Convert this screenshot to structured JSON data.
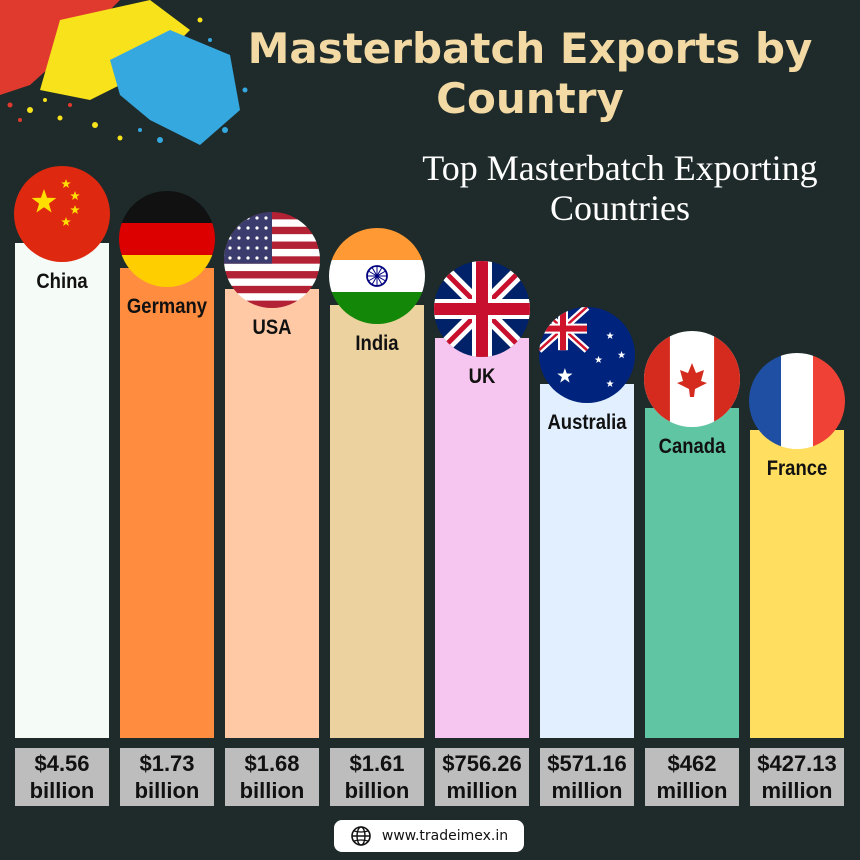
{
  "title": "Masterbatch Exports by Country",
  "subtitle": "Top Masterbatch Exporting Countries",
  "footer": {
    "website": "www.tradeimex.in",
    "icon": "globe-icon"
  },
  "colors": {
    "background": "#1e2b2a",
    "title": "#f3d9a4",
    "value_box": "#bdbdbd"
  },
  "chart_data": {
    "type": "bar",
    "title": "Masterbatch Exports by Country",
    "subtitle": "Top Masterbatch Exporting Countries",
    "unit": "USD",
    "categories": [
      "China",
      "Germany",
      "USA",
      "India",
      "UK",
      "Australia",
      "Canada",
      "France"
    ],
    "values": [
      4560000000,
      1730000000,
      1680000000,
      1610000000,
      756260000,
      571160000,
      462000000,
      427130000
    ],
    "value_labels": [
      [
        "$4.56",
        "billion"
      ],
      [
        "$1.73",
        "billion"
      ],
      [
        "$1.68",
        "billion"
      ],
      [
        "$1.61",
        "billion"
      ],
      [
        "$756.26",
        "million"
      ],
      [
        "$571.16",
        "million"
      ],
      [
        "$462",
        "million"
      ],
      [
        "$427.13",
        "million"
      ]
    ],
    "bar_colors": [
      "#f5fbf7",
      "#ff8c3f",
      "#ffc9a6",
      "#ecd29e",
      "#f7c6f0",
      "#e1efff",
      "#5fc5a3",
      "#ffde60"
    ],
    "flags": [
      "china-flag",
      "germany-flag",
      "usa-flag",
      "india-flag",
      "uk-flag",
      "australia-flag",
      "canada-flag",
      "france-flag"
    ],
    "grid": false,
    "legend": "none"
  }
}
